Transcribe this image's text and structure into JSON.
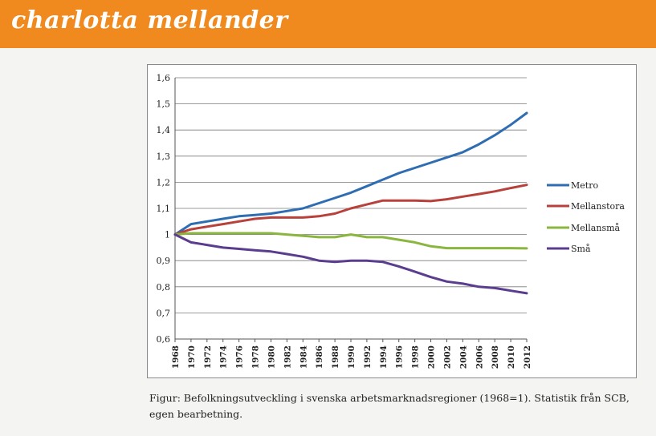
{
  "header": {
    "title": "charlotta mellander"
  },
  "caption": {
    "line1": "Figur: Befolkningsutveckling i svenska arbetsmarknadsregioner (1968=1). Statistik från SCB,",
    "line2": "egen bearbetning."
  },
  "chart_data": {
    "type": "line",
    "x_ticks": [
      "1968",
      "1970",
      "1972",
      "1974",
      "1976",
      "1978",
      "1980",
      "1982",
      "1984",
      "1986",
      "1988",
      "1990",
      "1992",
      "1994",
      "1996",
      "1998",
      "2000",
      "2002",
      "2004",
      "2006",
      "2008",
      "2010",
      "2012"
    ],
    "y_ticks": [
      "0,6",
      "0,7",
      "0,8",
      "0,9",
      "1",
      "1,1",
      "1,2",
      "1,3",
      "1,4",
      "1,5",
      "1,6"
    ],
    "ylim": [
      0.6,
      1.6
    ],
    "xlim": [
      1968,
      2012
    ],
    "grid": true,
    "legend_position": "right",
    "series": [
      {
        "name": "Metro",
        "color": "#2f6db3",
        "x": [
          1968,
          1970,
          1972,
          1974,
          1976,
          1978,
          1980,
          1982,
          1984,
          1986,
          1988,
          1990,
          1992,
          1994,
          1996,
          1998,
          2000,
          2002,
          2004,
          2006,
          2008,
          2010,
          2012
        ],
        "values": [
          1.0,
          1.04,
          1.05,
          1.06,
          1.07,
          1.075,
          1.08,
          1.09,
          1.1,
          1.12,
          1.14,
          1.16,
          1.185,
          1.21,
          1.235,
          1.255,
          1.275,
          1.295,
          1.315,
          1.345,
          1.38,
          1.42,
          1.465
        ]
      },
      {
        "name": "Mellanstora",
        "color": "#b8413c",
        "x": [
          1968,
          1970,
          1972,
          1974,
          1976,
          1978,
          1980,
          1982,
          1984,
          1986,
          1988,
          1990,
          1992,
          1994,
          1996,
          1998,
          2000,
          2002,
          2004,
          2006,
          2008,
          2010,
          2012
        ],
        "values": [
          1.0,
          1.02,
          1.03,
          1.04,
          1.05,
          1.06,
          1.065,
          1.065,
          1.065,
          1.07,
          1.08,
          1.1,
          1.115,
          1.13,
          1.13,
          1.13,
          1.128,
          1.135,
          1.145,
          1.155,
          1.165,
          1.178,
          1.19
        ]
      },
      {
        "name": "Mellansmå",
        "color": "#8ab53f",
        "x": [
          1968,
          1970,
          1972,
          1974,
          1976,
          1978,
          1980,
          1982,
          1984,
          1986,
          1988,
          1990,
          1992,
          1994,
          1996,
          1998,
          2000,
          2002,
          2004,
          2006,
          2008,
          2010,
          2012
        ],
        "values": [
          1.0,
          1.005,
          1.005,
          1.005,
          1.005,
          1.005,
          1.005,
          1.0,
          0.995,
          0.99,
          0.99,
          1.0,
          0.99,
          0.99,
          0.98,
          0.97,
          0.955,
          0.948,
          0.948,
          0.948,
          0.948,
          0.948,
          0.947
        ]
      },
      {
        "name": "Små",
        "color": "#5b3d8f",
        "x": [
          1968,
          1970,
          1972,
          1974,
          1976,
          1978,
          1980,
          1982,
          1984,
          1986,
          1988,
          1990,
          1992,
          1994,
          1996,
          1998,
          2000,
          2002,
          2004,
          2006,
          2008,
          2010,
          2012
        ],
        "values": [
          1.0,
          0.97,
          0.96,
          0.95,
          0.945,
          0.94,
          0.935,
          0.925,
          0.915,
          0.9,
          0.895,
          0.9,
          0.9,
          0.895,
          0.878,
          0.858,
          0.837,
          0.82,
          0.812,
          0.8,
          0.795,
          0.785,
          0.775
        ]
      }
    ]
  }
}
